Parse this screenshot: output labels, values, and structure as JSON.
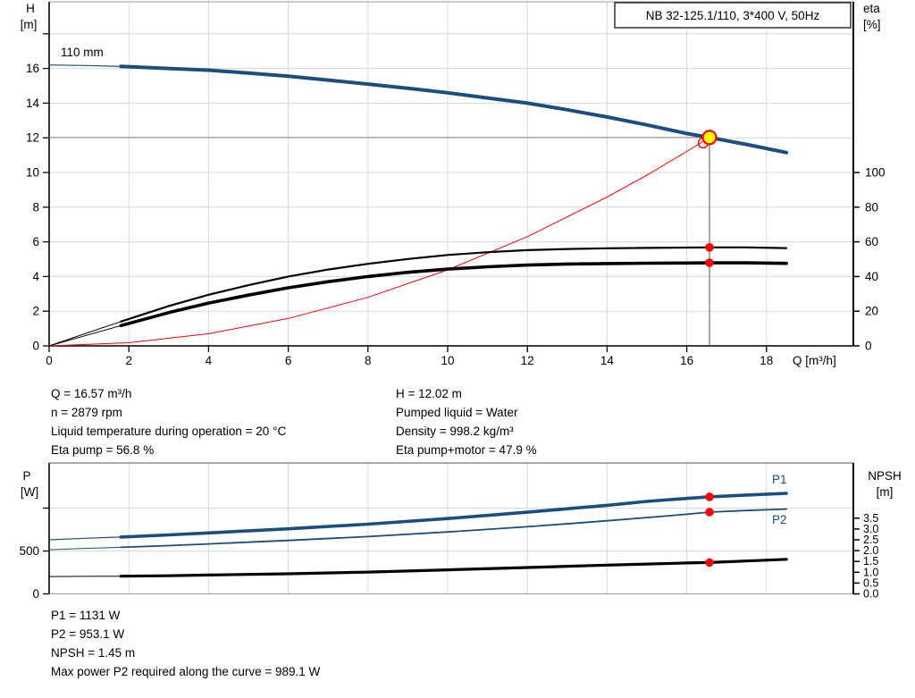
{
  "title_box": "NB 32-125.1/110, 3*400 V, 50Hz",
  "colors": {
    "curve_blue": "#1b4e7e",
    "curve_black": "#000000",
    "curve_red": "#ff0000",
    "duty_yellow": "#ffff00",
    "duty_red": "#ff0000",
    "grid": "#d8d8d8",
    "axis_black": "#000000",
    "border_gray": "#999999",
    "duty_hline": "#888888",
    "duty_vline": "#555555"
  },
  "labels": {
    "h": "H",
    "h_unit": "[m]",
    "eta": "eta",
    "eta_unit": "[%]",
    "q_axis": "Q [m³/h]",
    "p": "P",
    "p_unit": "[W]",
    "npsh": "NPSH",
    "npsh_unit": "[m]",
    "p1": "P1",
    "p2": "P2"
  },
  "info_top": {
    "left": [
      "Q = 16.57 m³/h",
      "n = 2879 rpm",
      "Liquid temperature during operation = 20 °C",
      "Eta pump = 56.8 %"
    ],
    "right": [
      "H = 12.02 m",
      "Pumped liquid = Water",
      "Density = 998.2 kg/m³",
      "Eta pump+motor = 47.9 %"
    ]
  },
  "info_bottom": [
    "P1 = 1131 W",
    "P2 = 953.1 W",
    "NPSH = 1.45 m",
    "Max power P2 required along the curve = 989.1 W"
  ],
  "chart_data": [
    {
      "type": "line",
      "title": "NB 32-125.1/110, 3*400 V, 50Hz",
      "impeller_label": "110 mm",
      "xlabel": "Q [m³/h]",
      "ylabel_left": "H [m]",
      "ylabel_right": "eta [%]",
      "x_ticks": [
        0,
        2,
        4,
        6,
        8,
        10,
        12,
        14,
        16,
        18
      ],
      "x_max": 20.18,
      "y_left_ticks": [
        0,
        2,
        4,
        6,
        8,
        10,
        12,
        14,
        16
      ],
      "y_left_grid": [
        2,
        4,
        6,
        8,
        10,
        12,
        14,
        16,
        18
      ],
      "y_left_max": 19.85,
      "y_right_ticks": [
        0,
        20,
        40,
        60,
        80,
        100
      ],
      "grid": true,
      "legend_position": "none",
      "series": [
        {
          "name": "system-curve",
          "scale": "H",
          "color": "curve_red",
          "width": 1,
          "points": [
            [
              0,
              0
            ],
            [
              2,
              0.18
            ],
            [
              4,
              0.7
            ],
            [
              6,
              1.58
            ],
            [
              8,
              2.8
            ],
            [
              10,
              4.38
            ],
            [
              12,
              6.3
            ],
            [
              14,
              8.58
            ],
            [
              15,
              9.85
            ],
            [
              16,
              11.21
            ],
            [
              16.57,
              12.02
            ]
          ]
        },
        {
          "name": "eta-pump-curve",
          "scale": "eta",
          "color": "curve_black",
          "width": 2.2,
          "thin_width": 1,
          "split_q": 1.8,
          "points": [
            [
              0,
              0
            ],
            [
              0.9,
              7
            ],
            [
              1.8,
              14
            ],
            [
              3,
              23
            ],
            [
              4,
              29.5
            ],
            [
              5,
              35
            ],
            [
              6,
              40
            ],
            [
              7,
              44
            ],
            [
              8,
              47.3
            ],
            [
              9,
              50.1
            ],
            [
              10,
              52.4
            ],
            [
              11,
              54
            ],
            [
              12,
              55.2
            ],
            [
              13,
              55.9
            ],
            [
              14,
              56.3
            ],
            [
              15,
              56.5
            ],
            [
              16,
              56.7
            ],
            [
              16.57,
              56.8
            ],
            [
              17.5,
              56.8
            ],
            [
              18.5,
              56.4
            ]
          ]
        },
        {
          "name": "eta-pump-motor-curve",
          "scale": "eta",
          "color": "curve_black",
          "width": 3.6,
          "thin_width": 1,
          "split_q": 1.8,
          "points": [
            [
              0,
              0
            ],
            [
              0.9,
              5.8
            ],
            [
              1.8,
              11.7
            ],
            [
              3,
              19.2
            ],
            [
              4,
              24.7
            ],
            [
              5,
              29.3
            ],
            [
              6,
              33.5
            ],
            [
              7,
              37
            ],
            [
              8,
              40
            ],
            [
              9,
              42.4
            ],
            [
              10,
              44.3
            ],
            [
              11,
              45.6
            ],
            [
              12,
              46.6
            ],
            [
              13,
              47.2
            ],
            [
              14,
              47.5
            ],
            [
              15,
              47.7
            ],
            [
              16,
              47.8
            ],
            [
              16.57,
              47.9
            ],
            [
              17.5,
              47.9
            ],
            [
              18.5,
              47.6
            ]
          ]
        },
        {
          "name": "pump-curve-110mm",
          "scale": "H",
          "color": "curve_blue",
          "width": 4,
          "thin_width": 1.2,
          "split_q": 1.8,
          "points": [
            [
              0,
              16.2
            ],
            [
              0.9,
              16.17
            ],
            [
              1.8,
              16.12
            ],
            [
              3,
              16.0
            ],
            [
              4,
              15.9
            ],
            [
              5,
              15.73
            ],
            [
              6,
              15.55
            ],
            [
              7,
              15.33
            ],
            [
              8,
              15.1
            ],
            [
              9,
              14.86
            ],
            [
              10,
              14.6
            ],
            [
              11,
              14.3
            ],
            [
              12,
              14.0
            ],
            [
              13,
              13.62
            ],
            [
              14,
              13.2
            ],
            [
              15,
              12.74
            ],
            [
              16,
              12.25
            ],
            [
              16.57,
              12.02
            ],
            [
              17.5,
              11.62
            ],
            [
              18.5,
              11.15
            ]
          ]
        }
      ],
      "duty_point": {
        "Q": 16.57,
        "H": 12.02,
        "eta_pump": 56.8,
        "eta_pump_motor": 47.9
      }
    },
    {
      "type": "line",
      "title": "",
      "xlabel": "",
      "ylabel_left": "P [W]",
      "ylabel_right": "NPSH [m]",
      "x_grid": [
        2,
        4,
        6,
        8,
        10,
        12,
        14,
        16,
        18
      ],
      "x_max": 20.18,
      "y_left_ticks": [
        {
          "v": 0,
          "label": "0"
        },
        {
          "v": 500,
          "label": "500"
        },
        {
          "v": 1000,
          "label": ""
        }
      ],
      "y_left_grid": [
        500,
        1000
      ],
      "y_left_max": 1525,
      "y_right_ticks": [
        0,
        0.5,
        1,
        1.5,
        2,
        2.5,
        3,
        3.5
      ],
      "grid": true,
      "legend_position": "inline-right",
      "series": [
        {
          "name": "p1-curve",
          "label": "P1",
          "scale": "P",
          "color": "curve_blue",
          "width": 3.6,
          "thin_width": 1.2,
          "split_q": 1.8,
          "points": [
            [
              0,
              630
            ],
            [
              0.9,
              648
            ],
            [
              1.8,
              663
            ],
            [
              3,
              688
            ],
            [
              4,
              710
            ],
            [
              6,
              758
            ],
            [
              8,
              812
            ],
            [
              10,
              878
            ],
            [
              12,
              952
            ],
            [
              14,
              1032
            ],
            [
              15,
              1078
            ],
            [
              16,
              1112
            ],
            [
              16.57,
              1131
            ],
            [
              17.5,
              1152
            ],
            [
              18.5,
              1172
            ]
          ]
        },
        {
          "name": "p2-curve",
          "label": "P2",
          "scale": "P",
          "color": "curve_blue",
          "width": 1.8,
          "thin_width": 1,
          "split_q": 1.8,
          "points": [
            [
              0,
              515
            ],
            [
              0.9,
              530
            ],
            [
              1.8,
              543
            ],
            [
              3,
              563
            ],
            [
              4,
              582
            ],
            [
              6,
              623
            ],
            [
              8,
              668
            ],
            [
              10,
              722
            ],
            [
              12,
              782
            ],
            [
              14,
              852
            ],
            [
              15,
              890
            ],
            [
              16,
              928
            ],
            [
              16.57,
              953
            ],
            [
              17.5,
              972
            ],
            [
              18.5,
              989
            ]
          ]
        },
        {
          "name": "npsh-curve",
          "label": "NPSH",
          "scale": "NPSH",
          "color": "curve_black",
          "width": 3.2,
          "thin_width": 1,
          "split_q": 1.8,
          "points": [
            [
              0,
              0.8
            ],
            [
              0.9,
              0.81
            ],
            [
              1.8,
              0.82
            ],
            [
              3,
              0.84
            ],
            [
              4,
              0.87
            ],
            [
              6,
              0.93
            ],
            [
              8,
              1.01
            ],
            [
              10,
              1.11
            ],
            [
              12,
              1.22
            ],
            [
              14,
              1.33
            ],
            [
              15,
              1.38
            ],
            [
              16,
              1.43
            ],
            [
              16.57,
              1.45
            ],
            [
              17.5,
              1.52
            ],
            [
              18.5,
              1.6
            ]
          ]
        }
      ],
      "duty_point": {
        "Q": 16.57,
        "P1": 1131,
        "P2": 953.1,
        "NPSH": 1.45
      }
    }
  ]
}
